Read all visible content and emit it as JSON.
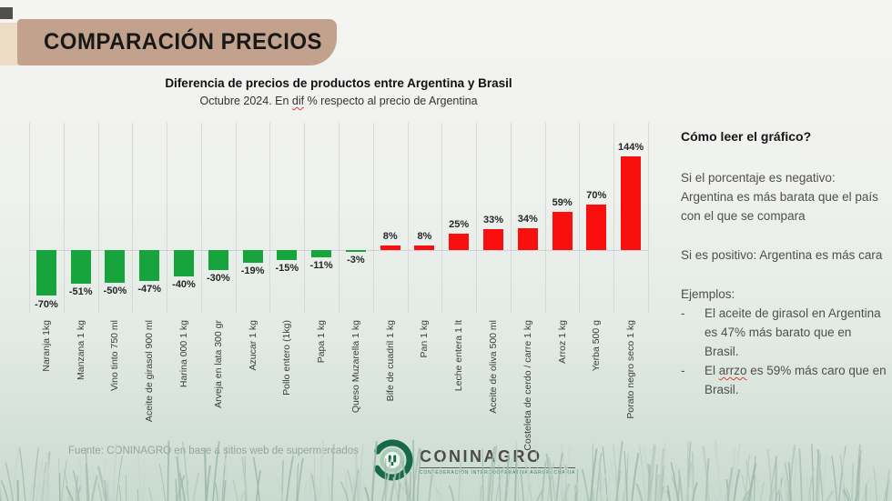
{
  "header": {
    "title": "COMPARACIÓN PRECIOS"
  },
  "chart_data": {
    "type": "bar",
    "title": "Diferencia de precios de productos entre Argentina y Brasil",
    "subtitle": {
      "pre": "Octubre 2024. En ",
      "word": "dif",
      "post": " % respecto al precio de Argentina"
    },
    "categories": [
      "Naranja 1kg",
      "Manzana 1 kg",
      "Vino tinto 750 ml",
      "Aceite de girasol 900 ml",
      "Harina 000 1 kg",
      "Arveja en lata 300 gr",
      "Azucar 1 kg",
      "Pollo entero (1kg)",
      "Papa 1 kg",
      "Queso Muzarella 1 kg",
      "Bife de cuadril 1 kg",
      "Pan 1 kg",
      "Leche entera 1 lt",
      "Aceite de oliva 500 ml",
      "Costeleta de cerdo / carre 1 kg",
      "Arroz 1 kg",
      "Yerba 500 g",
      "Porato negro seco 1 kg"
    ],
    "values": [
      -70,
      -51,
      -50,
      -47,
      -40,
      -30,
      -19,
      -15,
      -11,
      -3,
      8,
      8,
      25,
      33,
      34,
      59,
      70,
      144
    ],
    "value_labels": [
      "-70%",
      "-51%",
      "-50%",
      "-47%",
      "-40%",
      "-30%",
      "-19%",
      "-15%",
      "-11%",
      "-3%",
      "8%",
      "8%",
      "25%",
      "33%",
      "34%",
      "59%",
      "70%",
      "144%"
    ],
    "unit": "%",
    "ylim": [
      -97,
      195
    ],
    "grid": "vertical",
    "legend": "none",
    "colors": {
      "negative": "#18a43c",
      "positive": "#fa0f0f",
      "gridline": "#d8d8d8",
      "zeroline": "#d2d2d2"
    }
  },
  "side_panel": {
    "heading": "Cómo leer el gráfico?",
    "para1": "Si el porcentaje es negativo: Argentina es más barata que el país con el que se compara",
    "para2": "Si es positivo: Argentina es más cara",
    "examples_heading": "Ejemplos:",
    "example1": {
      "dash": "-",
      "text": "El aceite de girasol en Argentina es 47% más barato que en Brasil."
    },
    "example2": {
      "dash": "-",
      "pre": "El ",
      "word": "arrzo",
      "post": " es 59% más caro que en Brasil."
    }
  },
  "footer": {
    "source": "Fuente: CONINAGRO en base a sitios web de supermercados",
    "logo_name": "CONINAGRO",
    "logo_tagline": "CONFEDERACIÓN INTERCOOPERATIVA AGROPECUARIA"
  }
}
